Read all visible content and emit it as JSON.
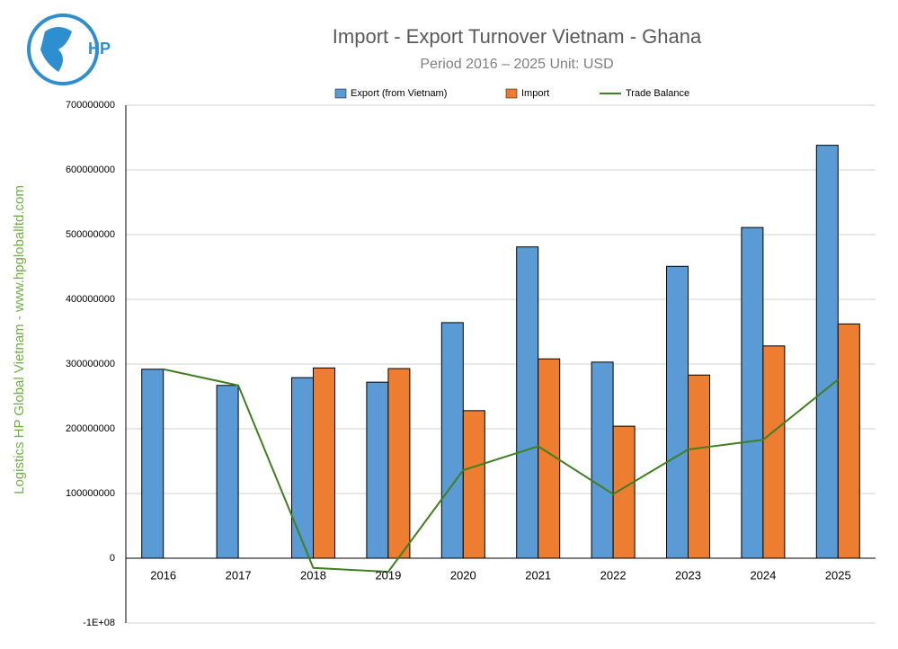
{
  "chart_data": {
    "type": "bar",
    "title": "Import - Export Turnover Vietnam - Ghana",
    "subtitle": "Period 2016 – 2025  Unit: USD",
    "side_text": "Logistics HP Global Vietnam - www.hpgloballtd.com",
    "logo_text": "HP",
    "categories": [
      "2016",
      "2017",
      "2018",
      "2019",
      "2020",
      "2021",
      "2022",
      "2023",
      "2024",
      "2025"
    ],
    "series": [
      {
        "name": "Export (from Vietnam)",
        "type": "bar",
        "color": "#5b9bd5",
        "values": [
          292000000,
          267000000,
          279000000,
          272000000,
          364000000,
          481000000,
          303000000,
          451000000,
          511000000,
          638000000
        ]
      },
      {
        "name": "Import",
        "type": "bar",
        "color": "#ed7d31",
        "values": [
          null,
          null,
          294000000,
          293000000,
          228000000,
          308000000,
          204000000,
          283000000,
          328000000,
          362000000
        ]
      },
      {
        "name": "Trade Balance",
        "type": "line",
        "color": "#3f7f1f",
        "values": [
          292000000,
          267000000,
          -15000000,
          -21000000,
          136000000,
          173000000,
          99000000,
          168000000,
          183000000,
          276000000
        ]
      }
    ],
    "ylim": [
      -100000000,
      700000000
    ],
    "yticks": [
      {
        "value": -100000000,
        "label": "-1E+08"
      },
      0,
      100000000,
      200000000,
      300000000,
      400000000,
      500000000,
      600000000,
      700000000
    ],
    "grid": true,
    "legend": "top"
  }
}
